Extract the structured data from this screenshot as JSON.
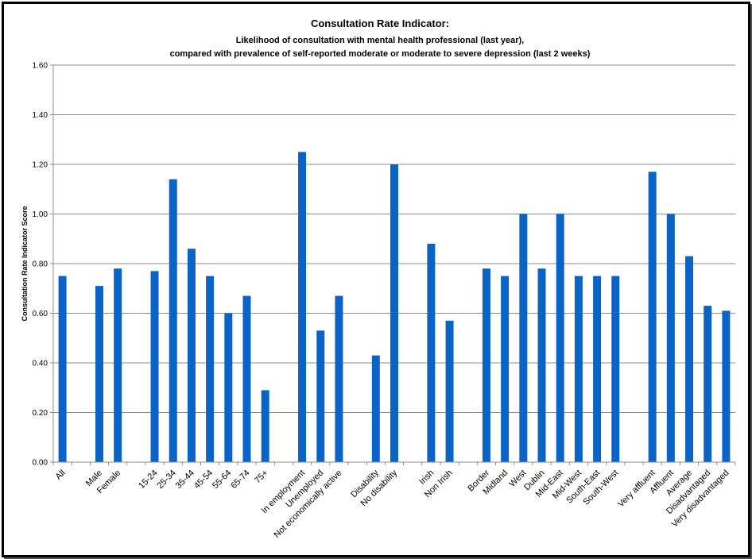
{
  "chart_data": {
    "type": "bar",
    "title": "Consultation Rate Indicator:",
    "subtitle_lines": [
      "Likelihood of consultation with mental health professional (last year),",
      "compared with prevalence of self-reported moderate or moderate to severe depression (last 2 weeks)"
    ],
    "xlabel": "",
    "ylabel": "Consultation Rate Indicator Score",
    "ylim": [
      0,
      1.6
    ],
    "yticks": [
      "0.00",
      "0.20",
      "0.40",
      "0.60",
      "0.80",
      "1.00",
      "1.20",
      "1.40",
      "1.60"
    ],
    "grid": true,
    "legend": "none",
    "bar_color": "#0a64c8",
    "categories": [
      "All",
      "",
      "Male",
      "Female",
      "",
      "15-24",
      "25-34",
      "35-44",
      "45-54",
      "55-64",
      "65-74",
      "75+",
      "",
      "In employment",
      "Unemployed",
      "Not economically active",
      "",
      "Disability",
      "No disability",
      "",
      "Irish",
      "Non Irish",
      "",
      "Border",
      "Midland",
      "West",
      "Dublin",
      "Mid-East",
      "Mid-West",
      "South-East",
      "South-West",
      "",
      "Very affluent",
      "Affluent",
      "Average",
      "Disadvantaged",
      "Very disadvantaged"
    ],
    "values": [
      0.75,
      null,
      0.71,
      0.78,
      null,
      0.77,
      1.14,
      0.86,
      0.75,
      0.6,
      0.67,
      0.29,
      null,
      1.25,
      0.53,
      0.67,
      null,
      0.43,
      1.2,
      null,
      0.88,
      0.57,
      null,
      0.78,
      0.75,
      1.0,
      0.78,
      1.0,
      0.75,
      0.75,
      0.75,
      null,
      1.17,
      1.0,
      0.83,
      0.63,
      0.61
    ]
  }
}
